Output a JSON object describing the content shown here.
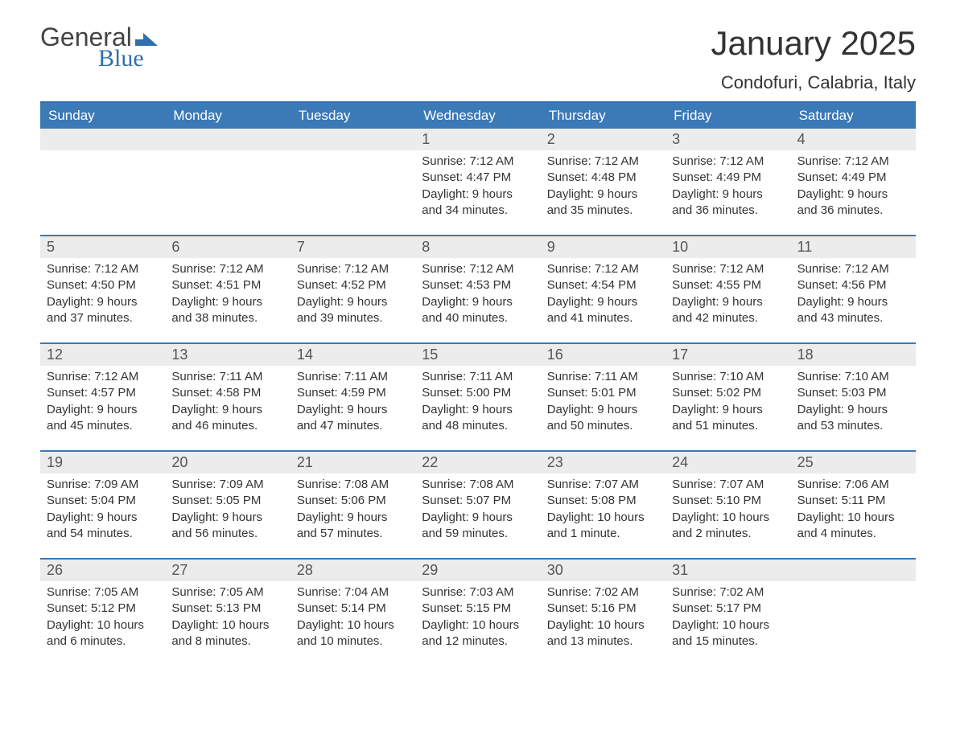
{
  "logo": {
    "general": "General",
    "blue": "Blue"
  },
  "title": "January 2025",
  "location": "Condofuri, Calabria, Italy",
  "colors": {
    "accent": "#3b79b7",
    "accent_border": "#2f6fad",
    "date_bg": "#ececec",
    "text": "#333333",
    "logo_gray": "#444444"
  },
  "day_names": [
    "Sunday",
    "Monday",
    "Tuesday",
    "Wednesday",
    "Thursday",
    "Friday",
    "Saturday"
  ],
  "weeks": [
    [
      null,
      null,
      null,
      {
        "d": "1",
        "sr": "Sunrise: 7:12 AM",
        "ss": "Sunset: 4:47 PM",
        "dl1": "Daylight: 9 hours",
        "dl2": "and 34 minutes."
      },
      {
        "d": "2",
        "sr": "Sunrise: 7:12 AM",
        "ss": "Sunset: 4:48 PM",
        "dl1": "Daylight: 9 hours",
        "dl2": "and 35 minutes."
      },
      {
        "d": "3",
        "sr": "Sunrise: 7:12 AM",
        "ss": "Sunset: 4:49 PM",
        "dl1": "Daylight: 9 hours",
        "dl2": "and 36 minutes."
      },
      {
        "d": "4",
        "sr": "Sunrise: 7:12 AM",
        "ss": "Sunset: 4:49 PM",
        "dl1": "Daylight: 9 hours",
        "dl2": "and 36 minutes."
      }
    ],
    [
      {
        "d": "5",
        "sr": "Sunrise: 7:12 AM",
        "ss": "Sunset: 4:50 PM",
        "dl1": "Daylight: 9 hours",
        "dl2": "and 37 minutes."
      },
      {
        "d": "6",
        "sr": "Sunrise: 7:12 AM",
        "ss": "Sunset: 4:51 PM",
        "dl1": "Daylight: 9 hours",
        "dl2": "and 38 minutes."
      },
      {
        "d": "7",
        "sr": "Sunrise: 7:12 AM",
        "ss": "Sunset: 4:52 PM",
        "dl1": "Daylight: 9 hours",
        "dl2": "and 39 minutes."
      },
      {
        "d": "8",
        "sr": "Sunrise: 7:12 AM",
        "ss": "Sunset: 4:53 PM",
        "dl1": "Daylight: 9 hours",
        "dl2": "and 40 minutes."
      },
      {
        "d": "9",
        "sr": "Sunrise: 7:12 AM",
        "ss": "Sunset: 4:54 PM",
        "dl1": "Daylight: 9 hours",
        "dl2": "and 41 minutes."
      },
      {
        "d": "10",
        "sr": "Sunrise: 7:12 AM",
        "ss": "Sunset: 4:55 PM",
        "dl1": "Daylight: 9 hours",
        "dl2": "and 42 minutes."
      },
      {
        "d": "11",
        "sr": "Sunrise: 7:12 AM",
        "ss": "Sunset: 4:56 PM",
        "dl1": "Daylight: 9 hours",
        "dl2": "and 43 minutes."
      }
    ],
    [
      {
        "d": "12",
        "sr": "Sunrise: 7:12 AM",
        "ss": "Sunset: 4:57 PM",
        "dl1": "Daylight: 9 hours",
        "dl2": "and 45 minutes."
      },
      {
        "d": "13",
        "sr": "Sunrise: 7:11 AM",
        "ss": "Sunset: 4:58 PM",
        "dl1": "Daylight: 9 hours",
        "dl2": "and 46 minutes."
      },
      {
        "d": "14",
        "sr": "Sunrise: 7:11 AM",
        "ss": "Sunset: 4:59 PM",
        "dl1": "Daylight: 9 hours",
        "dl2": "and 47 minutes."
      },
      {
        "d": "15",
        "sr": "Sunrise: 7:11 AM",
        "ss": "Sunset: 5:00 PM",
        "dl1": "Daylight: 9 hours",
        "dl2": "and 48 minutes."
      },
      {
        "d": "16",
        "sr": "Sunrise: 7:11 AM",
        "ss": "Sunset: 5:01 PM",
        "dl1": "Daylight: 9 hours",
        "dl2": "and 50 minutes."
      },
      {
        "d": "17",
        "sr": "Sunrise: 7:10 AM",
        "ss": "Sunset: 5:02 PM",
        "dl1": "Daylight: 9 hours",
        "dl2": "and 51 minutes."
      },
      {
        "d": "18",
        "sr": "Sunrise: 7:10 AM",
        "ss": "Sunset: 5:03 PM",
        "dl1": "Daylight: 9 hours",
        "dl2": "and 53 minutes."
      }
    ],
    [
      {
        "d": "19",
        "sr": "Sunrise: 7:09 AM",
        "ss": "Sunset: 5:04 PM",
        "dl1": "Daylight: 9 hours",
        "dl2": "and 54 minutes."
      },
      {
        "d": "20",
        "sr": "Sunrise: 7:09 AM",
        "ss": "Sunset: 5:05 PM",
        "dl1": "Daylight: 9 hours",
        "dl2": "and 56 minutes."
      },
      {
        "d": "21",
        "sr": "Sunrise: 7:08 AM",
        "ss": "Sunset: 5:06 PM",
        "dl1": "Daylight: 9 hours",
        "dl2": "and 57 minutes."
      },
      {
        "d": "22",
        "sr": "Sunrise: 7:08 AM",
        "ss": "Sunset: 5:07 PM",
        "dl1": "Daylight: 9 hours",
        "dl2": "and 59 minutes."
      },
      {
        "d": "23",
        "sr": "Sunrise: 7:07 AM",
        "ss": "Sunset: 5:08 PM",
        "dl1": "Daylight: 10 hours",
        "dl2": "and 1 minute."
      },
      {
        "d": "24",
        "sr": "Sunrise: 7:07 AM",
        "ss": "Sunset: 5:10 PM",
        "dl1": "Daylight: 10 hours",
        "dl2": "and 2 minutes."
      },
      {
        "d": "25",
        "sr": "Sunrise: 7:06 AM",
        "ss": "Sunset: 5:11 PM",
        "dl1": "Daylight: 10 hours",
        "dl2": "and 4 minutes."
      }
    ],
    [
      {
        "d": "26",
        "sr": "Sunrise: 7:05 AM",
        "ss": "Sunset: 5:12 PM",
        "dl1": "Daylight: 10 hours",
        "dl2": "and 6 minutes."
      },
      {
        "d": "27",
        "sr": "Sunrise: 7:05 AM",
        "ss": "Sunset: 5:13 PM",
        "dl1": "Daylight: 10 hours",
        "dl2": "and 8 minutes."
      },
      {
        "d": "28",
        "sr": "Sunrise: 7:04 AM",
        "ss": "Sunset: 5:14 PM",
        "dl1": "Daylight: 10 hours",
        "dl2": "and 10 minutes."
      },
      {
        "d": "29",
        "sr": "Sunrise: 7:03 AM",
        "ss": "Sunset: 5:15 PM",
        "dl1": "Daylight: 10 hours",
        "dl2": "and 12 minutes."
      },
      {
        "d": "30",
        "sr": "Sunrise: 7:02 AM",
        "ss": "Sunset: 5:16 PM",
        "dl1": "Daylight: 10 hours",
        "dl2": "and 13 minutes."
      },
      {
        "d": "31",
        "sr": "Sunrise: 7:02 AM",
        "ss": "Sunset: 5:17 PM",
        "dl1": "Daylight: 10 hours",
        "dl2": "and 15 minutes."
      },
      null
    ]
  ]
}
